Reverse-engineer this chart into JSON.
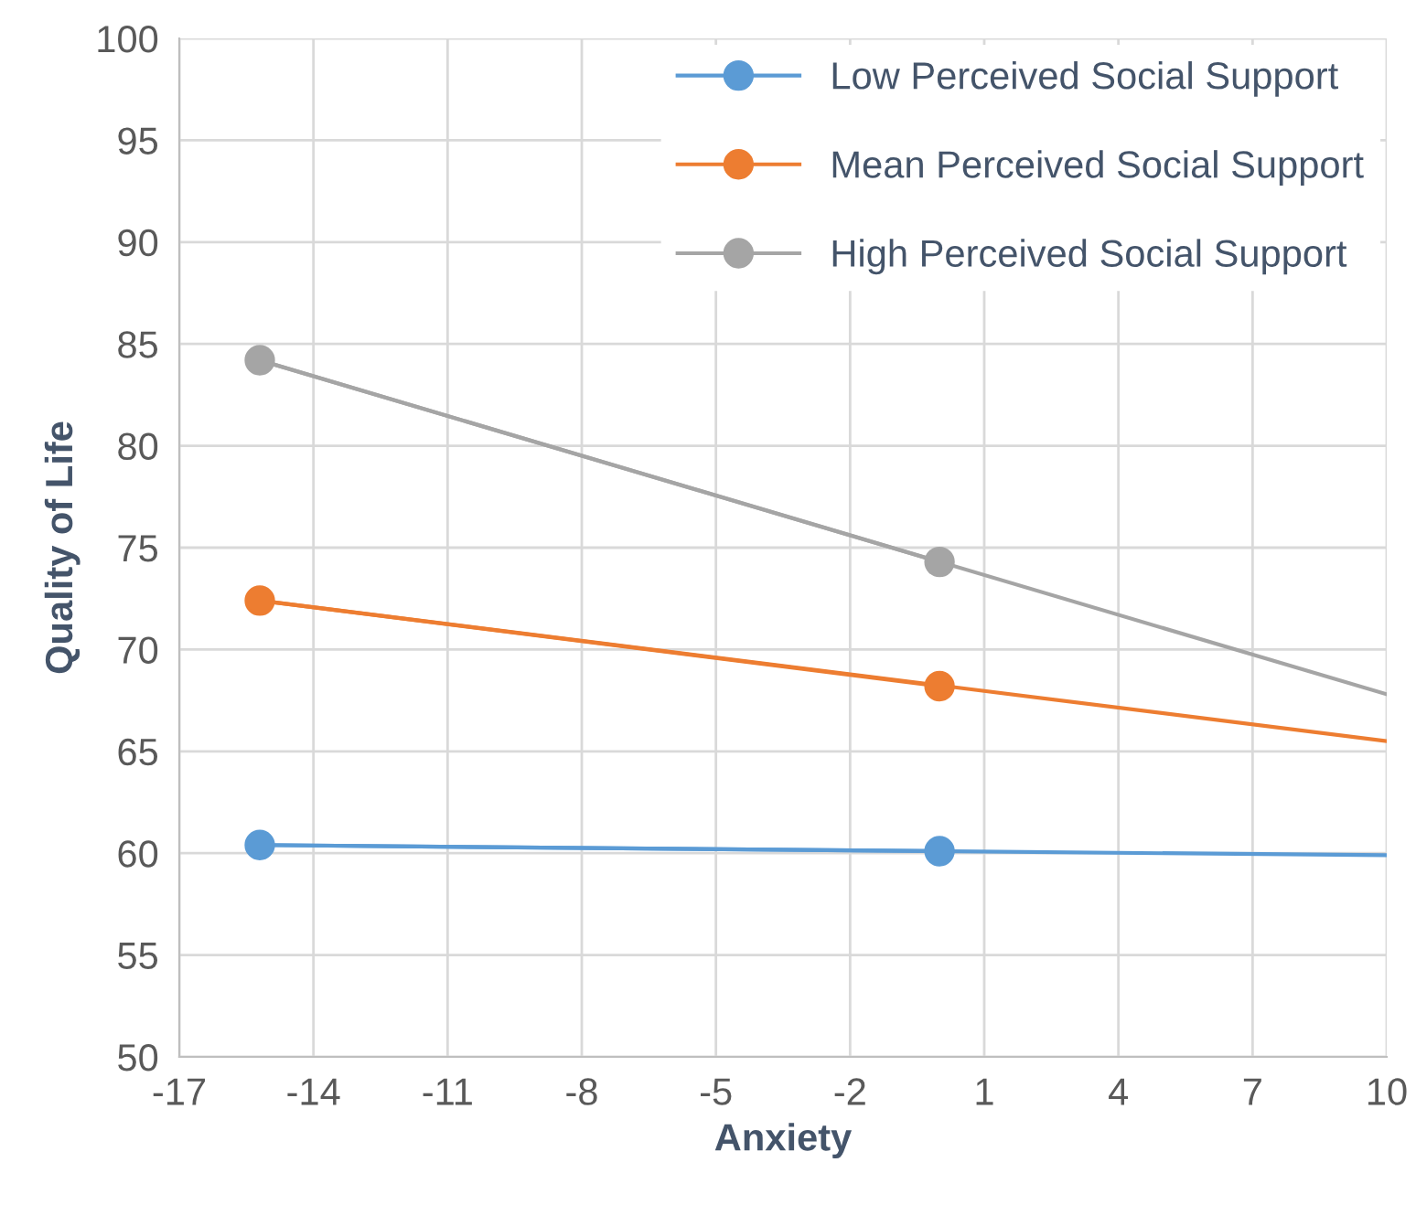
{
  "chart_data": {
    "type": "line",
    "xlabel": "Anxiety",
    "ylabel": "Quality of Life",
    "xlim": [
      -17,
      10
    ],
    "xticks": [
      -17,
      -14,
      -11,
      -8,
      -5,
      -2,
      1,
      4,
      7,
      10
    ],
    "ylim": [
      50,
      100
    ],
    "yticks": [
      50,
      55,
      60,
      65,
      70,
      75,
      80,
      85,
      90,
      95,
      100
    ],
    "grid": true,
    "legend": "top right",
    "series": [
      {
        "name": "Low Perceived Social Support",
        "color": "#5b9bd5",
        "x": [
          -15.2,
          0
        ],
        "values": [
          60.4,
          60.1
        ],
        "marker": "circle"
      },
      {
        "name": "Mean Perceived Social Support",
        "color": "#ed7d31",
        "x": [
          -15.2,
          0
        ],
        "values": [
          72.4,
          68.2
        ],
        "marker": "circle"
      },
      {
        "name": "High Perceived Social Support",
        "color": "#a5a5a5",
        "x": [
          -15.2,
          0
        ],
        "values": [
          84.2,
          74.3
        ],
        "marker": "circle"
      },
      {
        "color": "#5b9bd5",
        "x": [
          -15.2,
          10
        ],
        "values": [
          60.4,
          59.9
        ],
        "marker": "none"
      },
      {
        "color": "#ed7d31",
        "x": [
          -15.2,
          10
        ],
        "values": [
          72.4,
          65.5
        ],
        "marker": "none"
      },
      {
        "color": "#a5a5a5",
        "x": [
          -15.2,
          10
        ],
        "values": [
          84.2,
          67.8
        ],
        "marker": "none"
      }
    ]
  }
}
